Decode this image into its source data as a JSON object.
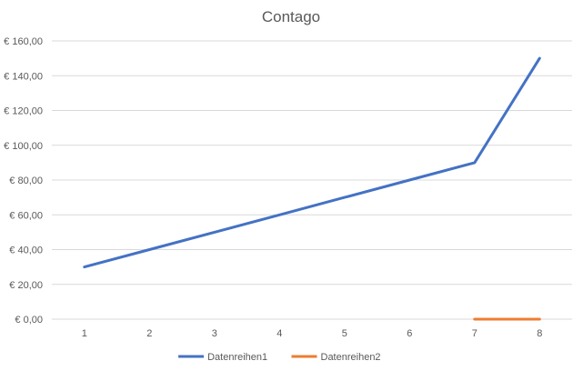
{
  "chart_data": {
    "type": "line",
    "title": "Contago",
    "xlabel": "",
    "ylabel": "",
    "x": [
      1,
      2,
      3,
      4,
      5,
      6,
      7,
      8
    ],
    "y_ticks": [
      "€ 0,00",
      "€ 20,00",
      "€ 40,00",
      "€ 60,00",
      "€ 80,00",
      "€ 100,00",
      "€ 120,00",
      "€ 140,00",
      "€ 160,00"
    ],
    "ylim": [
      0,
      160
    ],
    "grid": true,
    "legend_position": "bottom",
    "series": [
      {
        "name": "Datenreihen1",
        "color": "#4472c4",
        "values": [
          30,
          40,
          50,
          60,
          70,
          80,
          90,
          150
        ]
      },
      {
        "name": "Datenreihen2",
        "color": "#ed7d31",
        "values": [
          null,
          null,
          null,
          null,
          null,
          null,
          0,
          0
        ]
      }
    ]
  }
}
